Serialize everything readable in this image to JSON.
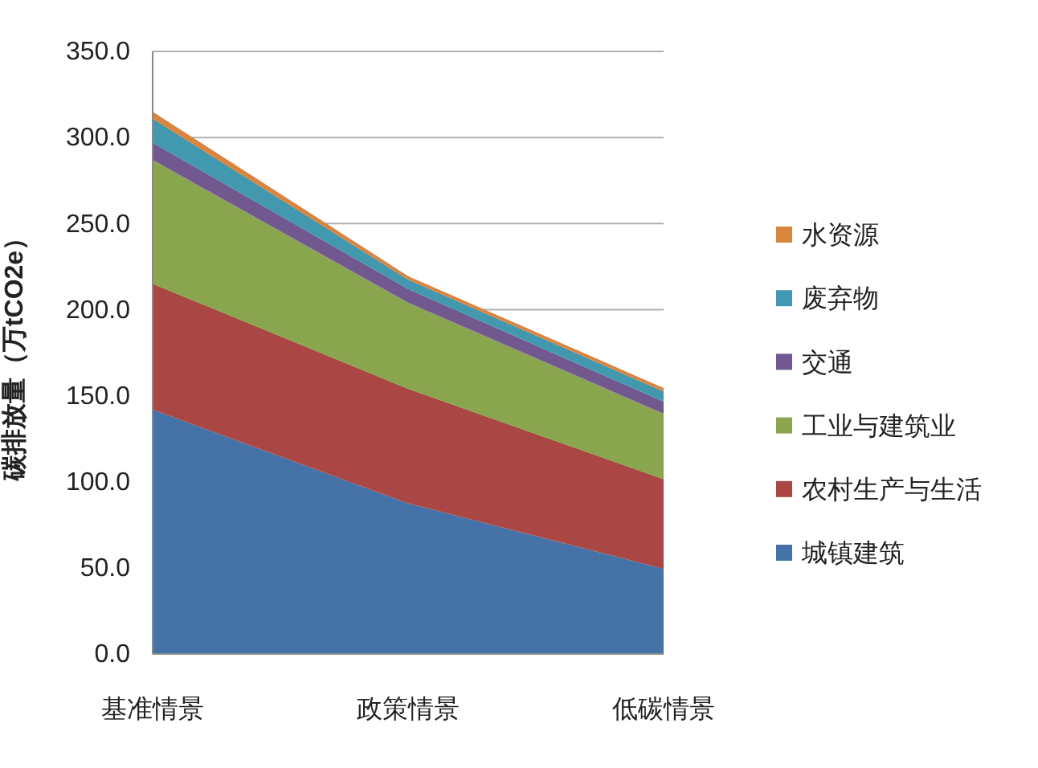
{
  "chart_data": {
    "type": "area",
    "stacked": true,
    "ylabel": "碳排放量（万tCO2e）",
    "categories": [
      "基准情景",
      "政策情景",
      "低碳情景"
    ],
    "series": [
      {
        "name": "城镇建筑",
        "color": "#4572a7",
        "values": [
          142,
          87.5,
          49.5
        ]
      },
      {
        "name": "农村生产与生活",
        "color": "#aa4643",
        "values": [
          73,
          66.5,
          52
        ]
      },
      {
        "name": "工业与建筑业",
        "color": "#89a54e",
        "values": [
          72,
          50,
          38
        ]
      },
      {
        "name": "交通",
        "color": "#71588f",
        "values": [
          10,
          8,
          7
        ]
      },
      {
        "name": "废弃物",
        "color": "#4198af",
        "values": [
          14,
          5.5,
          6
        ]
      },
      {
        "name": "水资源",
        "color": "#db843d",
        "values": [
          4,
          2,
          2
        ]
      }
    ],
    "ylim": [
      0,
      350
    ],
    "yticks": [
      {
        "value": 0,
        "label": "0.0"
      },
      {
        "value": 50,
        "label": "50.0"
      },
      {
        "value": 100,
        "label": "100.0"
      },
      {
        "value": 150,
        "label": "150.0"
      },
      {
        "value": 200,
        "label": "200.0"
      },
      {
        "value": 250,
        "label": "250.0"
      },
      {
        "value": 300,
        "label": "300.0"
      },
      {
        "value": 350,
        "label": "350.0"
      }
    ],
    "grid": "y",
    "legend": "right"
  }
}
